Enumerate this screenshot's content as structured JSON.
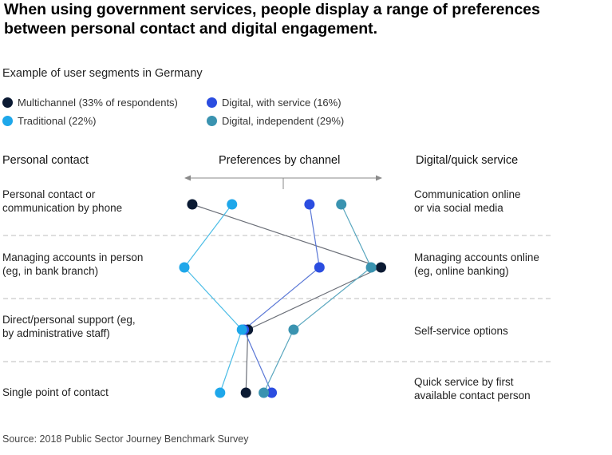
{
  "title_lines": [
    "When using government services, people display a range of preferences",
    "between personal contact and digital engagement."
  ],
  "subtitle": "Example of user segments in Germany",
  "legend": [
    {
      "label": "Multichannel (33% of respondents)",
      "color": "#0b1a33"
    },
    {
      "label": "Digital, with service (16%)",
      "color": "#2b4de0"
    },
    {
      "label": "Traditional (22%)",
      "color": "#1ea7ea"
    },
    {
      "label": "Digital, independent (29%)",
      "color": "#3a93b0"
    }
  ],
  "headers": {
    "left": "Personal contact",
    "center": "Preferences by channel",
    "right": "Digital/quick service"
  },
  "rows": [
    {
      "left": [
        "Personal contact or",
        "communication by phone"
      ],
      "right": [
        "Communication online",
        "or via social media"
      ]
    },
    {
      "left": [
        "Managing accounts in person",
        "(eg, in bank branch)"
      ],
      "right": [
        "Managing accounts online",
        "(eg, online banking)"
      ]
    },
    {
      "left": [
        "Direct/personal support (eg,",
        "by administrative staff)"
      ],
      "right": [
        "Self-service options"
      ]
    },
    {
      "left": [
        "Single point of contact"
      ],
      "right": [
        "Quick service by first",
        "available contact person"
      ]
    }
  ],
  "source": "Source: 2018 Public Sector Journey Benchmark Survey",
  "chart_data": {
    "type": "scatter",
    "scale": "preference position from personal contact (0) to digital/quick service (100)",
    "categories": [
      "Personal contact or communication by phone",
      "Managing accounts in person (eg, in bank branch)",
      "Direct/personal support (eg, by administrative staff)",
      "Single point of contact"
    ],
    "series": [
      {
        "name": "Multichannel (33% of respondents)",
        "color": "#0b1a33",
        "values": [
          4,
          99,
          32,
          31
        ]
      },
      {
        "name": "Digital, with service (16%)",
        "color": "#2b4de0",
        "values": [
          63,
          68,
          30,
          44
        ]
      },
      {
        "name": "Traditional (22%)",
        "color": "#1ea7ea",
        "values": [
          24,
          0,
          29,
          18
        ]
      },
      {
        "name": "Digital, independent (29%)",
        "color": "#3a93b0",
        "values": [
          79,
          94,
          55,
          40
        ]
      }
    ]
  }
}
